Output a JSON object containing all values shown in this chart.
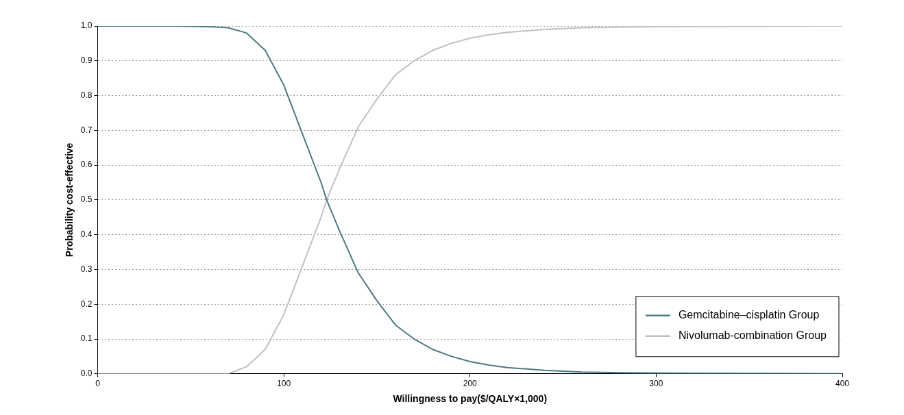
{
  "chart_data": {
    "type": "line",
    "xlabel": "Willingness to pay($/QALY×1,000)",
    "ylabel": "Probability cost-effective",
    "x": [
      0,
      20,
      40,
      60,
      70,
      80,
      90,
      100,
      110,
      120,
      123,
      130,
      140,
      150,
      160,
      170,
      180,
      190,
      200,
      210,
      220,
      240,
      260,
      280,
      300,
      350,
      400
    ],
    "series": [
      {
        "name": "Gemcitabine–cisplatin Group",
        "color": "#4a7a80",
        "values": [
          1.0,
          1.0,
          1.0,
          0.998,
          0.995,
          0.98,
          0.93,
          0.83,
          0.69,
          0.55,
          0.5,
          0.41,
          0.29,
          0.21,
          0.14,
          0.1,
          0.07,
          0.05,
          0.035,
          0.025,
          0.018,
          0.01,
          0.005,
          0.003,
          0.002,
          0.001,
          0.0
        ]
      },
      {
        "name": "Nivolumab-combination Group",
        "color": "#c0c0c0",
        "values": [
          0.0,
          0.0,
          0.0,
          0.0,
          0.0,
          0.02,
          0.07,
          0.17,
          0.31,
          0.45,
          0.5,
          0.59,
          0.71,
          0.79,
          0.86,
          0.9,
          0.93,
          0.95,
          0.965,
          0.975,
          0.982,
          0.99,
          0.995,
          0.997,
          0.998,
          0.999,
          1.0
        ]
      }
    ],
    "xlim": [
      0,
      400
    ],
    "xticks": [
      0,
      100,
      200,
      300,
      400
    ],
    "ylim": [
      0,
      1
    ],
    "yticks": [
      {
        "value": 0,
        "label": "0.0"
      },
      {
        "value": 0.1,
        "label": "0.1"
      },
      {
        "value": 0.2,
        "label": "0.2"
      },
      {
        "value": 0.3,
        "label": "0.3"
      },
      {
        "value": 0.4,
        "label": "0.4"
      },
      {
        "value": 0.5,
        "label": "0.5"
      },
      {
        "value": 0.6,
        "label": "0.6"
      },
      {
        "value": 0.7,
        "label": "0.7"
      },
      {
        "value": 0.8,
        "label": "0.8"
      },
      {
        "value": 0.9,
        "label": "0.9"
      },
      {
        "value": 1,
        "label": "1.0"
      }
    ],
    "grid": "y",
    "legend": "bottom right"
  }
}
